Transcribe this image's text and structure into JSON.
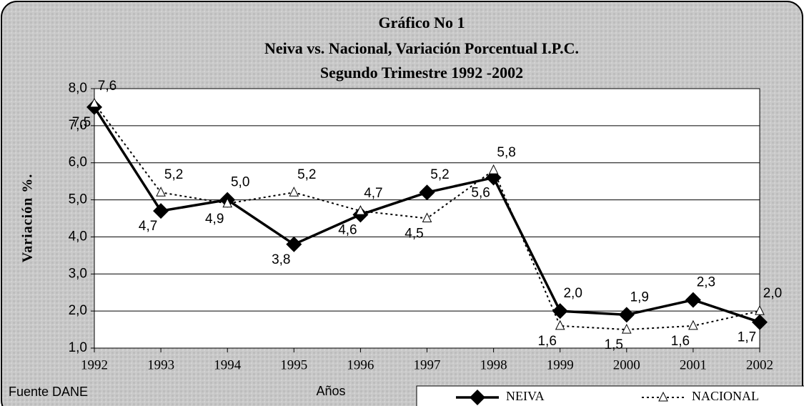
{
  "chart_data": {
    "type": "line",
    "title": "Gráfico No 1",
    "subtitle": [
      "Neiva vs. Nacional, Variación Porcentual I.P.C.",
      "Segundo Trimestre 1992 -2002"
    ],
    "y_label": "Variación %.",
    "x_label": "Años",
    "source": "Fuente DANE",
    "categories": [
      "1992",
      "1993",
      "1994",
      "1995",
      "1996",
      "1997",
      "1998",
      "1999",
      "2000",
      "2001",
      "2002"
    ],
    "series": [
      {
        "name": "NEIVA",
        "color": "#000000",
        "marker": "diamond",
        "dashed": false,
        "values": [
          7.5,
          4.7,
          5.0,
          3.8,
          4.6,
          5.2,
          5.6,
          2.0,
          1.9,
          2.3,
          1.7
        ],
        "value_labels": [
          "7,5",
          "4,7",
          "5,0",
          "3,8",
          "4,6",
          "5,2",
          "5,6",
          "2,0",
          "1,9",
          "2,3",
          "1,7"
        ]
      },
      {
        "name": "NACIONAL",
        "color": "#000000",
        "marker": "triangle",
        "dashed": true,
        "values": [
          7.6,
          5.2,
          4.9,
          5.2,
          4.7,
          4.5,
          5.8,
          1.6,
          1.5,
          1.6,
          2.0
        ],
        "value_labels": [
          "7,6",
          "5,2",
          "4,9",
          "5,2",
          "4,7",
          "4,5",
          "5,8",
          "1,6",
          "1,5",
          "1,6",
          "2,0"
        ]
      }
    ],
    "ylim": [
      1,
      8
    ],
    "yticks": [
      {
        "value": 1,
        "label": "1,0"
      },
      {
        "value": 2,
        "label": "2,0"
      },
      {
        "value": 3,
        "label": "3,0"
      },
      {
        "value": 4,
        "label": "4,0"
      },
      {
        "value": 5,
        "label": "5,0"
      },
      {
        "value": 6,
        "label": "6,0"
      },
      {
        "value": 7,
        "label": "7,0"
      },
      {
        "value": 8,
        "label": "8,0"
      }
    ],
    "grid": true,
    "legend": "bottom-right"
  }
}
